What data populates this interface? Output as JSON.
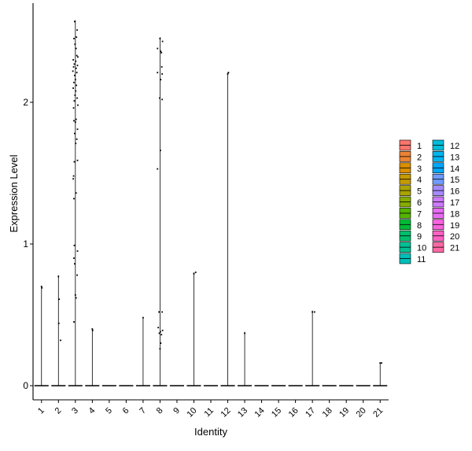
{
  "chart_data": {
    "type": "violin",
    "xlabel": "Identity",
    "ylabel": "Expression Level",
    "categories": [
      "1",
      "2",
      "3",
      "4",
      "5",
      "6",
      "7",
      "8",
      "9",
      "10",
      "11",
      "12",
      "13",
      "14",
      "15",
      "16",
      "17",
      "18",
      "19",
      "20",
      "21"
    ],
    "ylim": [
      -0.1,
      2.6
    ],
    "yticks": [
      0,
      1,
      2
    ],
    "grid": false,
    "legend_position": "right",
    "colors": [
      "#F8766D",
      "#EB8335",
      "#DA8F00",
      "#C49A00",
      "#A9A400",
      "#86AC00",
      "#53B400",
      "#00BA38",
      "#00BE6D",
      "#00C094",
      "#00C0B8",
      "#00BCD8",
      "#00B4EF",
      "#00A7FF",
      "#6F9CFF",
      "#A58AFF",
      "#CD79FF",
      "#E76BF3",
      "#F863DF",
      "#FF61C3",
      "#FF67A4"
    ],
    "series": [
      {
        "name": "1",
        "max": 0.7,
        "points": [
          [
            0.0,
            0.7
          ],
          [
            0.05,
            0.69
          ]
        ]
      },
      {
        "name": "2",
        "max": 0.78,
        "points": [
          [
            0.0,
            0.77
          ],
          [
            0.1,
            0.61
          ],
          [
            0.05,
            0.44
          ],
          [
            0.3,
            0.32
          ]
        ]
      },
      {
        "name": "3",
        "max": 2.58,
        "points": [
          [
            -0.1,
            2.57
          ],
          [
            0.25,
            2.51
          ],
          [
            -0.2,
            2.45
          ],
          [
            0.15,
            2.46
          ],
          [
            -0.05,
            2.41
          ],
          [
            0.1,
            2.38
          ],
          [
            0.2,
            2.33
          ],
          [
            0.35,
            2.32
          ],
          [
            -0.3,
            2.3
          ],
          [
            0.05,
            2.29
          ],
          [
            -0.15,
            2.27
          ],
          [
            0.3,
            2.26
          ],
          [
            -0.25,
            2.25
          ],
          [
            0.1,
            2.24
          ],
          [
            -0.35,
            2.22
          ],
          [
            0.2,
            2.21
          ],
          [
            -0.1,
            2.19
          ],
          [
            0.0,
            2.16
          ],
          [
            -0.2,
            2.14
          ],
          [
            0.15,
            2.12
          ],
          [
            -0.3,
            2.1
          ],
          [
            0.05,
            2.08
          ],
          [
            -0.05,
            2.05
          ],
          [
            0.25,
            2.03
          ],
          [
            -0.15,
            2.01
          ],
          [
            0.35,
            1.98
          ],
          [
            -0.25,
            1.96
          ],
          [
            0.1,
            1.88
          ],
          [
            -0.2,
            1.87
          ],
          [
            0.0,
            1.86
          ],
          [
            0.3,
            1.81
          ],
          [
            -0.1,
            1.78
          ],
          [
            0.2,
            1.74
          ],
          [
            0.05,
            1.71
          ],
          [
            0.3,
            1.59
          ],
          [
            -0.15,
            1.58
          ],
          [
            -0.25,
            1.48
          ],
          [
            -0.3,
            1.46
          ],
          [
            0.1,
            1.36
          ],
          [
            -0.2,
            1.32
          ],
          [
            0.3,
            0.95
          ],
          [
            -0.15,
            0.99
          ],
          [
            -0.2,
            0.9
          ],
          [
            -0.1,
            0.86
          ],
          [
            0.25,
            0.78
          ],
          [
            0.0,
            0.64
          ],
          [
            0.1,
            0.62
          ],
          [
            -0.2,
            0.45
          ]
        ]
      },
      {
        "name": "4",
        "max": 0.4,
        "points": [
          [
            0.0,
            0.4
          ],
          [
            0.05,
            0.39
          ]
        ]
      },
      {
        "name": "5",
        "max": 0.0,
        "points": []
      },
      {
        "name": "6",
        "max": 0.0,
        "points": []
      },
      {
        "name": "7",
        "max": 0.48,
        "points": [
          [
            0.0,
            0.48
          ]
        ]
      },
      {
        "name": "8",
        "max": 2.46,
        "points": [
          [
            0.0,
            2.45
          ],
          [
            0.35,
            2.43
          ],
          [
            -0.35,
            2.38
          ],
          [
            0.1,
            2.36
          ],
          [
            0.2,
            2.35
          ],
          [
            0.25,
            2.25
          ],
          [
            0.3,
            2.2
          ],
          [
            -0.35,
            2.21
          ],
          [
            0.1,
            2.16
          ],
          [
            -0.05,
            2.03
          ],
          [
            0.3,
            2.02
          ],
          [
            0.05,
            1.66
          ],
          [
            -0.35,
            1.53
          ],
          [
            -0.15,
            0.52
          ],
          [
            0.3,
            0.52
          ],
          [
            -0.25,
            0.41
          ],
          [
            0.35,
            0.39
          ],
          [
            0.05,
            0.38
          ],
          [
            -0.1,
            0.37
          ],
          [
            0.2,
            0.36
          ],
          [
            0.1,
            0.3
          ],
          [
            0.0,
            0.26
          ]
        ]
      },
      {
        "name": "9",
        "max": 0.0,
        "points": []
      },
      {
        "name": "10",
        "max": 0.8,
        "points": [
          [
            0.0,
            0.79
          ],
          [
            0.25,
            0.8
          ]
        ]
      },
      {
        "name": "11",
        "max": 0.0,
        "points": []
      },
      {
        "name": "12",
        "max": 2.21,
        "points": [
          [
            0.0,
            2.2
          ],
          [
            0.1,
            2.21
          ]
        ]
      },
      {
        "name": "13",
        "max": 0.38,
        "points": [
          [
            0.0,
            0.37
          ]
        ]
      },
      {
        "name": "14",
        "max": 0.0,
        "points": []
      },
      {
        "name": "15",
        "max": 0.0,
        "points": []
      },
      {
        "name": "16",
        "max": 0.0,
        "points": []
      },
      {
        "name": "17",
        "max": 0.53,
        "points": [
          [
            0.0,
            0.52
          ],
          [
            0.3,
            0.52
          ]
        ]
      },
      {
        "name": "18",
        "max": 0.0,
        "points": []
      },
      {
        "name": "19",
        "max": 0.0,
        "points": []
      },
      {
        "name": "20",
        "max": 0.0,
        "points": []
      },
      {
        "name": "21",
        "max": 0.16,
        "points": [
          [
            0.0,
            0.16
          ],
          [
            0.2,
            0.16
          ]
        ]
      }
    ]
  }
}
